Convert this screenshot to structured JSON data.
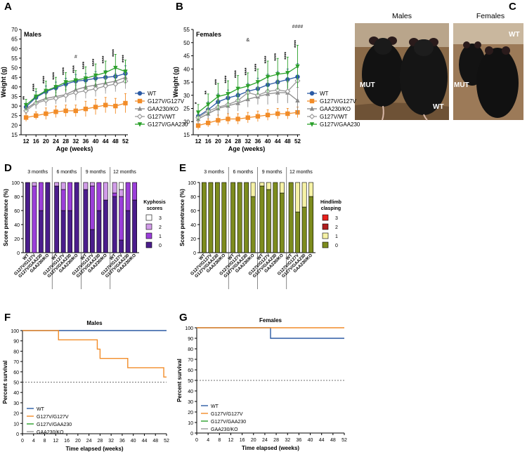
{
  "panels": {
    "A": "A",
    "B": "B",
    "C": "C",
    "D": "D",
    "E": "E",
    "F": "F",
    "G": "G"
  },
  "colors": {
    "wt": "#2b5aa4",
    "g127v_g127v": "#f28c28",
    "gaa230_ko": "#8a8a8a",
    "g127v_wt": "#9a9a9a",
    "g127v_gaa230": "#2aa02a",
    "purple_dark": "#4b1d8c",
    "purple": "#9b3fd9",
    "pink": "#d19ce8",
    "olive": "#7d8c1e",
    "paleyellow": "#f6f2a6",
    "dred": "#b01e1e",
    "red": "#e8201c"
  },
  "panel_c": {
    "males_title": "Males",
    "females_title": "Females",
    "mut1": "MUT",
    "wt1": "WT",
    "mut2": "MUT",
    "wt2": "WT"
  },
  "chart_data": [
    {
      "id": "A",
      "type": "line",
      "subtitle": "Males",
      "xlabel": "Age (weeks)",
      "ylabel": "Weight (g)",
      "x": [
        12,
        16,
        20,
        24,
        28,
        32,
        36,
        40,
        44,
        48,
        52
      ],
      "ylim": [
        15,
        70
      ],
      "yticks": [
        15,
        20,
        25,
        30,
        35,
        40,
        45,
        50,
        55,
        60,
        65,
        70
      ],
      "series": [
        {
          "name": "WT",
          "color": "#2b5aa4",
          "marker": "circle",
          "values": [
            29.5,
            34.5,
            37.5,
            39.5,
            41.5,
            43,
            43.5,
            44.5,
            45,
            45.5,
            47
          ],
          "err": [
            2,
            3,
            3,
            3,
            3,
            3.5,
            3.5,
            3.5,
            3.5,
            4,
            4
          ]
        },
        {
          "name": "G127V/G127V",
          "color": "#f28c28",
          "marker": "square",
          "values": [
            24,
            25,
            26,
            27,
            27.5,
            27.5,
            28.5,
            29.5,
            30.5,
            30,
            31.5
          ],
          "err": [
            2,
            2,
            3,
            3,
            3,
            3,
            4,
            4,
            4,
            4,
            5
          ]
        },
        {
          "name": "GAA230/KO",
          "color": "#8a8a8a",
          "marker": "triangle",
          "values": [
            28.5,
            32,
            34,
            35,
            36,
            38.5,
            40,
            41,
            42,
            43,
            45
          ],
          "err": [
            2,
            3,
            3,
            3,
            4,
            4,
            4,
            4,
            4,
            4,
            4
          ]
        },
        {
          "name": "G127V/WT",
          "color": "#9a9a9a",
          "marker": "diamond",
          "values": [
            27.5,
            31.5,
            33,
            34,
            35.5,
            37,
            38,
            39,
            40.5,
            41.5,
            43
          ],
          "err": [
            2,
            3,
            3,
            3,
            3,
            4,
            4,
            4,
            4,
            4,
            4
          ]
        },
        {
          "name": "G127V/GAA230",
          "color": "#2aa02a",
          "marker": "tridown",
          "values": [
            30.5,
            35,
            38,
            40,
            42.5,
            43.5,
            44.5,
            46,
            47.5,
            50,
            48
          ],
          "err": [
            3,
            4,
            5,
            5,
            5,
            5,
            6,
            6,
            6,
            7,
            6
          ]
        }
      ],
      "annotations": [
        "**",
        "****",
        "****",
        "****",
        "****",
        "****",
        "****",
        "****",
        "****",
        "****",
        "****",
        "#"
      ]
    },
    {
      "id": "B",
      "type": "line",
      "subtitle": "Females",
      "xlabel": "Age (weeks)",
      "ylabel": "Weight (g)",
      "x": [
        12,
        16,
        20,
        24,
        28,
        32,
        36,
        40,
        44,
        48,
        52
      ],
      "ylim": [
        15,
        55
      ],
      "yticks": [
        15,
        20,
        25,
        30,
        35,
        40,
        45,
        50,
        55
      ],
      "series": [
        {
          "name": "WT",
          "color": "#2b5aa4",
          "marker": "circle",
          "values": [
            22,
            24.5,
            27.5,
            29,
            30,
            31.5,
            32.5,
            34,
            35,
            36,
            37
          ],
          "err": [
            2,
            3,
            3,
            3,
            3,
            3,
            4,
            4,
            4,
            4,
            5
          ]
        },
        {
          "name": "G127V/G127V",
          "color": "#f28c28",
          "marker": "square",
          "values": [
            18.5,
            19.5,
            20.5,
            21,
            21,
            21.5,
            22,
            22.5,
            23,
            23,
            23.5
          ],
          "err": [
            1.5,
            1.5,
            2,
            2,
            2,
            2,
            2,
            2,
            2,
            2,
            2
          ]
        },
        {
          "name": "GAA230/KO",
          "color": "#8a8a8a",
          "marker": "triangle",
          "values": [
            21,
            23,
            25,
            26,
            27,
            28.5,
            29.5,
            30.5,
            31,
            31,
            28
          ],
          "err": [
            2,
            2,
            3,
            3,
            3,
            3,
            3,
            4,
            4,
            4,
            5
          ]
        },
        {
          "name": "G127V/WT",
          "color": "#9a9a9a",
          "marker": "diamond",
          "values": [
            21.5,
            24,
            25.5,
            26.5,
            28,
            31,
            30,
            31.5,
            32,
            31.5,
            35.5
          ],
          "err": [
            2,
            2,
            3,
            3,
            3,
            3,
            3,
            4,
            4,
            4,
            5
          ]
        },
        {
          "name": "G127V/GAA230",
          "color": "#2aa02a",
          "marker": "tridown",
          "values": [
            23.5,
            26.5,
            29.5,
            30.5,
            32.5,
            33.5,
            35,
            37,
            38,
            38.5,
            41
          ],
          "err": [
            3,
            4,
            5,
            5,
            5,
            5,
            5,
            6,
            6,
            6,
            8
          ]
        }
      ],
      "annotations": [
        "*",
        "**",
        "***",
        "****",
        "****",
        "****",
        "****",
        "****",
        "****",
        "****",
        "****",
        "&",
        "####"
      ]
    },
    {
      "id": "D",
      "type": "bar",
      "stacked": true,
      "ylabel": "Score penetrance (%)",
      "ylim": [
        0,
        100
      ],
      "yticks": [
        0,
        20,
        40,
        60,
        80,
        100
      ],
      "legend_title": "Kyphosis scores",
      "groups": [
        "3 months",
        "6 months",
        "9 months",
        "12 months"
      ],
      "categories": [
        "WT",
        "G127V/G127V",
        "G127V/GAA230",
        "GAA230/KO"
      ],
      "score_labels": [
        "3",
        "2",
        "1",
        "0"
      ],
      "score_colors": {
        "0": "#4b1d8c",
        "1": "#9b3fd9",
        "2": "#d19ce8",
        "3": "#ffffff"
      },
      "stacks": [
        [
          {
            "0": 100
          },
          {
            "0": 0,
            "1": 95,
            "2": 5
          },
          {
            "0": 60,
            "1": 40
          },
          {
            "0": 100
          }
        ],
        [
          {
            "0": 95,
            "2": 5
          },
          {
            "0": 60,
            "1": 30,
            "2": 10
          },
          {
            "0": 60,
            "1": 40
          },
          {
            "0": 100
          }
        ],
        [
          {
            "0": 90,
            "2": 10
          },
          {
            "0": 33,
            "1": 62,
            "2": 5
          },
          {
            "0": 60,
            "1": 40
          },
          {
            "0": 75,
            "2": 25
          }
        ],
        [
          {
            "0": 80,
            "1": 5,
            "2": 15
          },
          {
            "0": 18,
            "1": 62,
            "2": 10,
            "3": 10
          },
          {
            "0": 60,
            "1": 40
          },
          {
            "0": 75,
            "1": 25
          }
        ]
      ]
    },
    {
      "id": "E",
      "type": "bar",
      "stacked": true,
      "ylabel": "Score penetrance (%)",
      "ylim": [
        0,
        100
      ],
      "yticks": [
        0,
        20,
        40,
        60,
        80,
        100
      ],
      "legend_title": "Hindlimb clasping",
      "groups": [
        "3 months",
        "6 months",
        "9 months",
        "12 months"
      ],
      "categories": [
        "WT",
        "G127V/G127V",
        "G127V/GAA230",
        "GAA230/KO"
      ],
      "score_labels": [
        "3",
        "2",
        "1",
        "0"
      ],
      "score_colors": {
        "0": "#7d8c1e",
        "1": "#f6f2a6",
        "2": "#b01e1e",
        "3": "#e8201c"
      },
      "stacks": [
        [
          {
            "0": 100
          },
          {
            "0": 100
          },
          {
            "0": 100
          },
          {
            "0": 100
          }
        ],
        [
          {
            "0": 100
          },
          {
            "0": 100
          },
          {
            "0": 100
          },
          {
            "0": 80,
            "1": 20
          }
        ],
        [
          {
            "0": 95,
            "1": 5
          },
          {
            "0": 90,
            "1": 10
          },
          {
            "0": 100
          },
          {
            "0": 85,
            "1": 15
          }
        ],
        [
          {
            "0": 100
          },
          {
            "0": 58,
            "1": 42
          },
          {
            "0": 65,
            "1": 35
          },
          {
            "0": 80,
            "1": 20
          }
        ]
      ]
    },
    {
      "id": "F",
      "type": "line",
      "subtitle": "Males",
      "xlabel": "Time elapsed (weeks)",
      "ylabel": "Percent survival",
      "xlim": [
        0,
        52
      ],
      "xticks": [
        0,
        4,
        8,
        12,
        16,
        20,
        24,
        28,
        32,
        36,
        40,
        44,
        48,
        52
      ],
      "ylim": [
        0,
        100
      ],
      "yticks": [
        0,
        10,
        20,
        30,
        40,
        50,
        60,
        70,
        80,
        90,
        100
      ],
      "reference_line": 50,
      "series": [
        {
          "name": "WT",
          "color": "#2b5aa4",
          "steps": [
            [
              0,
              100
            ],
            [
              52,
              100
            ]
          ]
        },
        {
          "name": "G127V/G127V",
          "color": "#f28c28",
          "steps": [
            [
              0,
              100
            ],
            [
              13,
              91
            ],
            [
              27,
              82
            ],
            [
              28,
              73
            ],
            [
              38,
              64
            ],
            [
              51,
              55
            ],
            [
              52,
              55
            ]
          ]
        },
        {
          "name": "G127V/GAA230",
          "color": "#2aa02a",
          "steps": []
        },
        {
          "name": "GAA230/KO",
          "color": "#9a9a9a",
          "steps": []
        }
      ]
    },
    {
      "id": "G",
      "type": "line",
      "subtitle": "Females",
      "xlabel": "Time elapsed (weeks)",
      "ylabel": "Percent survival",
      "xlim": [
        0,
        52
      ],
      "xticks": [
        0,
        4,
        8,
        12,
        16,
        20,
        24,
        28,
        32,
        36,
        40,
        44,
        48,
        52
      ],
      "ylim": [
        0,
        100
      ],
      "yticks": [
        0,
        10,
        20,
        30,
        40,
        50,
        60,
        70,
        80,
        90,
        100
      ],
      "reference_line": 50,
      "series": [
        {
          "name": "WT",
          "color": "#2b5aa4",
          "steps": [
            [
              0,
              100
            ],
            [
              26,
              90
            ],
            [
              52,
              90
            ]
          ]
        },
        {
          "name": "G127V/G127V",
          "color": "#f28c28",
          "steps": [
            [
              0,
              100
            ],
            [
              52,
              100
            ]
          ]
        },
        {
          "name": "G127V/GAA230",
          "color": "#2aa02a",
          "steps": []
        },
        {
          "name": "GAA230/KO",
          "color": "#9a9a9a",
          "steps": []
        }
      ]
    }
  ]
}
